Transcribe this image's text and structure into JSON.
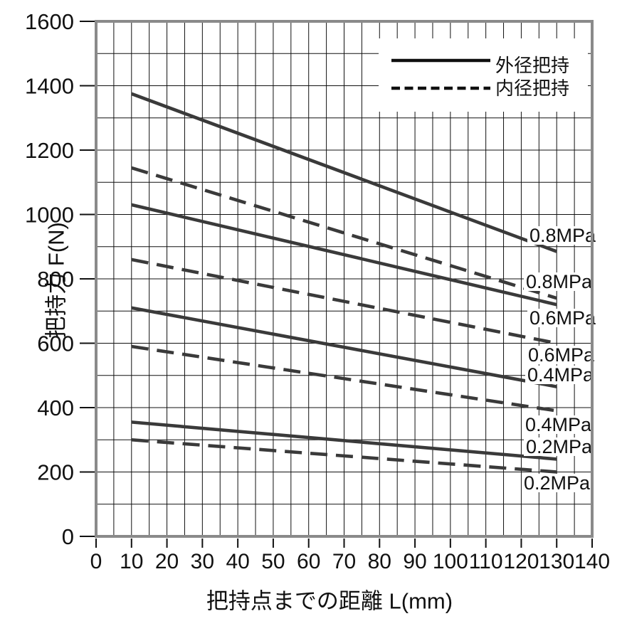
{
  "chart_data": {
    "type": "line",
    "title": "",
    "xlabel": "把持点までの距離  L(mm)",
    "ylabel": "把持力  F(N)",
    "xlim": [
      0,
      140
    ],
    "ylim": [
      0,
      1600
    ],
    "x_ticks": [
      0,
      10,
      20,
      30,
      40,
      50,
      60,
      70,
      80,
      90,
      100,
      110,
      120,
      130,
      140
    ],
    "y_ticks": [
      0,
      200,
      400,
      600,
      800,
      1000,
      1200,
      1400,
      1600
    ],
    "x_grid_step": 5,
    "y_grid_step": 100,
    "grid": "on",
    "legend_position": "top-right",
    "legend": [
      {
        "key": "outer-grip",
        "label": "外径把持",
        "style": "solid"
      },
      {
        "key": "inner-grip",
        "label": "内径把持",
        "style": "dashed"
      }
    ],
    "series": [
      {
        "key": "outer-grip-0.8mpa",
        "grip": "外径把持",
        "pressure": "0.8MPa",
        "style": "solid",
        "points": [
          [
            10,
            1375
          ],
          [
            130,
            885
          ]
        ]
      },
      {
        "key": "inner-grip-0.8mpa",
        "grip": "内径把持",
        "pressure": "0.8MPa",
        "style": "dashed",
        "points": [
          [
            10,
            1145
          ],
          [
            130,
            740
          ]
        ]
      },
      {
        "key": "outer-grip-0.6mpa",
        "grip": "外径把持",
        "pressure": "0.6MPa",
        "style": "solid",
        "points": [
          [
            10,
            1030
          ],
          [
            130,
            720
          ]
        ]
      },
      {
        "key": "inner-grip-0.6mpa",
        "grip": "内径把持",
        "pressure": "0.6MPa",
        "style": "dashed",
        "points": [
          [
            10,
            860
          ],
          [
            130,
            600
          ]
        ]
      },
      {
        "key": "outer-grip-0.4mpa",
        "grip": "外径把持",
        "pressure": "0.4MPa",
        "style": "solid",
        "points": [
          [
            10,
            710
          ],
          [
            130,
            465
          ]
        ]
      },
      {
        "key": "inner-grip-0.4mpa",
        "grip": "内径把持",
        "pressure": "0.4MPa",
        "style": "dashed",
        "points": [
          [
            10,
            590
          ],
          [
            130,
            390
          ]
        ]
      },
      {
        "key": "outer-grip-0.2mpa",
        "grip": "外径把持",
        "pressure": "0.2MPa",
        "style": "solid",
        "points": [
          [
            10,
            355
          ],
          [
            130,
            240
          ]
        ]
      },
      {
        "key": "inner-grip-0.2mpa",
        "grip": "内径把持",
        "pressure": "0.2MPa",
        "style": "dashed",
        "points": [
          [
            10,
            300
          ],
          [
            130,
            200
          ]
        ]
      }
    ],
    "annotations": [
      {
        "text": "0.8MPa",
        "series": "outer-grip-0.8mpa",
        "x": 744,
        "y": 340
      },
      {
        "text": "0.8MPa",
        "series": "inner-grip-0.8mpa",
        "x": 739,
        "y": 405
      },
      {
        "text": "0.6MPa",
        "series": "outer-grip-0.6mpa",
        "x": 744,
        "y": 456
      },
      {
        "text": "0.6MPa",
        "series": "inner-grip-0.6mpa",
        "x": 742,
        "y": 508
      },
      {
        "text": "0.4MPa",
        "series": "outer-grip-0.4mpa",
        "x": 741,
        "y": 536
      },
      {
        "text": "0.4MPa",
        "series": "inner-grip-0.4mpa",
        "x": 738,
        "y": 606
      },
      {
        "text": "0.2MPa",
        "series": "outer-grip-0.2mpa",
        "x": 739,
        "y": 637
      },
      {
        "text": "0.2MPa",
        "series": "inner-grip-0.2mpa",
        "x": 736,
        "y": 688
      }
    ],
    "colors": {
      "background": "#ffffff",
      "grid": "#111111",
      "border": "#8a8a8a",
      "series": "#3a3a3a",
      "legend_sample": "#0f0f0f",
      "text": "#111111"
    }
  }
}
